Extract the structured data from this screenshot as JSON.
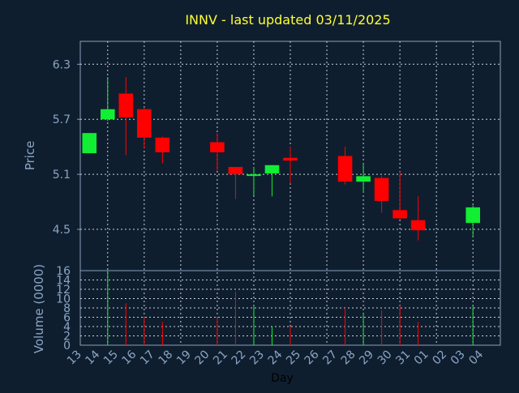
{
  "colors": {
    "background": "#0f1e2f",
    "axis": "#8aa0b8",
    "grid": "#c8d0d8",
    "title": "#ffff33",
    "label": "#8aa6c4",
    "up": "#11ee33",
    "down": "#ff0000"
  },
  "chart_data": {
    "type": "candlestick",
    "title": "INNV - last updated 03/11/2025",
    "grid": true,
    "x": {
      "label": "Day",
      "tick_labels": [
        "13",
        "14",
        "15",
        "16",
        "17",
        "18",
        "19",
        "20",
        "21",
        "22",
        "23",
        "24",
        "25",
        "26",
        "27",
        "28",
        "29",
        "30",
        "31",
        "01",
        "02",
        "03",
        "04"
      ]
    },
    "price_panel": {
      "ylabel": "Price",
      "ylim": [
        4.05,
        6.55
      ],
      "yticks": [
        "4.5",
        "5.1",
        "5.7",
        "6.3"
      ],
      "candles": [
        {
          "day": "13",
          "open": 5.33,
          "high": 5.55,
          "low": 5.33,
          "close": 5.55
        },
        {
          "day": "14",
          "open": 5.7,
          "high": 6.16,
          "low": 5.68,
          "close": 5.81
        },
        {
          "day": "15",
          "open": 5.98,
          "high": 6.16,
          "low": 5.31,
          "close": 5.72
        },
        {
          "day": "16",
          "open": 5.81,
          "high": 5.83,
          "low": 5.38,
          "close": 5.5
        },
        {
          "day": "17",
          "open": 5.5,
          "high": 5.51,
          "low": 5.22,
          "close": 5.34
        },
        {
          "day": "20",
          "open": 5.45,
          "high": 5.55,
          "low": 5.14,
          "close": 5.34
        },
        {
          "day": "21",
          "open": 5.18,
          "high": 5.18,
          "low": 4.83,
          "close": 5.1
        },
        {
          "day": "22",
          "open": 5.09,
          "high": 5.18,
          "low": 4.87,
          "close": 5.1
        },
        {
          "day": "23",
          "open": 5.11,
          "high": 5.2,
          "low": 4.86,
          "close": 5.2
        },
        {
          "day": "24",
          "open": 5.28,
          "high": 5.4,
          "low": 5.0,
          "close": 5.25
        },
        {
          "day": "27",
          "open": 5.3,
          "high": 5.4,
          "low": 4.99,
          "close": 5.02
        },
        {
          "day": "28",
          "open": 5.02,
          "high": 5.22,
          "low": 4.9,
          "close": 5.08
        },
        {
          "day": "29",
          "open": 5.06,
          "high": 5.08,
          "low": 4.68,
          "close": 4.81
        },
        {
          "day": "30",
          "open": 4.71,
          "high": 5.13,
          "low": 4.61,
          "close": 4.62
        },
        {
          "day": "31",
          "open": 4.6,
          "high": 4.86,
          "low": 4.38,
          "close": 4.49
        },
        {
          "day": "03",
          "open": 4.57,
          "high": 4.76,
          "low": 4.42,
          "close": 4.74
        }
      ]
    },
    "volume_panel": {
      "ylabel": "Volume (0000)",
      "ylim": [
        0,
        16
      ],
      "yticks": [
        "0",
        "2",
        "4",
        "6",
        "8",
        "10",
        "12",
        "14",
        "16"
      ],
      "bars": [
        {
          "day": "14",
          "value": 16,
          "dir": "up"
        },
        {
          "day": "15",
          "value": 9,
          "dir": "down"
        },
        {
          "day": "16",
          "value": 6,
          "dir": "down"
        },
        {
          "day": "17",
          "value": 5,
          "dir": "down"
        },
        {
          "day": "20",
          "value": 6,
          "dir": "down"
        },
        {
          "day": "21",
          "value": 11.5,
          "dir": "down"
        },
        {
          "day": "22",
          "value": 8.5,
          "dir": "up"
        },
        {
          "day": "23",
          "value": 4,
          "dir": "up"
        },
        {
          "day": "24",
          "value": 4,
          "dir": "down"
        },
        {
          "day": "27",
          "value": 8,
          "dir": "down"
        },
        {
          "day": "28",
          "value": 7,
          "dir": "up"
        },
        {
          "day": "29",
          "value": 7.5,
          "dir": "down"
        },
        {
          "day": "30",
          "value": 8.5,
          "dir": "down"
        },
        {
          "day": "31",
          "value": 5,
          "dir": "down"
        },
        {
          "day": "03",
          "value": 8.5,
          "dir": "up"
        }
      ]
    }
  }
}
